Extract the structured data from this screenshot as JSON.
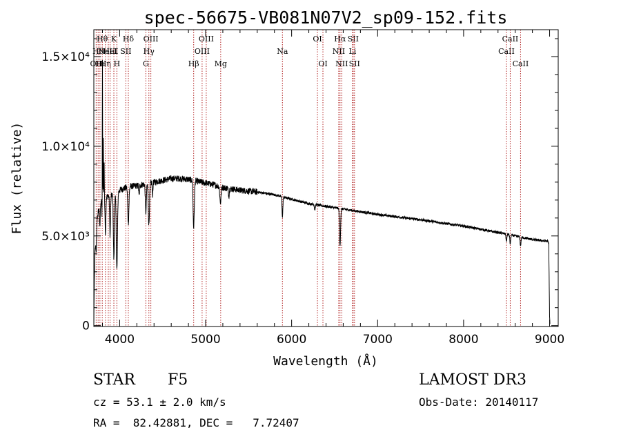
{
  "chart_data": {
    "type": "line",
    "title": "spec-56675-VB081N07V2_sp09-152.fits",
    "xlabel": "Wavelength (Å)",
    "ylabel": "Flux (relative)",
    "xlim": [
      3700,
      9100
    ],
    "ylim": [
      -50,
      16500
    ],
    "xticks": [
      4000,
      5000,
      6000,
      7000,
      8000,
      9000
    ],
    "yticks": [
      {
        "value": 0,
        "label": "0"
      },
      {
        "value": 5000,
        "label": "5.0×10³"
      },
      {
        "value": 10000,
        "label": "1.0×10⁴"
      },
      {
        "value": 15000,
        "label": "1.5×10⁴"
      }
    ],
    "continuum": [
      [
        3700,
        0
      ],
      [
        3705,
        2300
      ],
      [
        3712,
        3900
      ],
      [
        3725,
        5600
      ],
      [
        3750,
        6300
      ],
      [
        3775,
        6800
      ],
      [
        3800,
        7100
      ],
      [
        3850,
        7200
      ],
      [
        3900,
        7250
      ],
      [
        3950,
        7350
      ],
      [
        4000,
        7550
      ],
      [
        4100,
        7750
      ],
      [
        4200,
        7800
      ],
      [
        4300,
        7900
      ],
      [
        4400,
        8000
      ],
      [
        4500,
        8100
      ],
      [
        4600,
        8200
      ],
      [
        4700,
        8200
      ],
      [
        4800,
        8150
      ],
      [
        4900,
        8050
      ],
      [
        5000,
        7950
      ],
      [
        5100,
        7850
      ],
      [
        5200,
        7700
      ],
      [
        5400,
        7550
      ],
      [
        5600,
        7450
      ],
      [
        5800,
        7300
      ],
      [
        6000,
        7050
      ],
      [
        6200,
        6800
      ],
      [
        6400,
        6650
      ],
      [
        6600,
        6500
      ],
      [
        6800,
        6350
      ],
      [
        7000,
        6200
      ],
      [
        7500,
        5900
      ],
      [
        8000,
        5550
      ],
      [
        8500,
        5100
      ],
      [
        8800,
        4800
      ],
      [
        8980,
        4700
      ],
      [
        8990,
        4550
      ],
      [
        9000,
        500
      ],
      [
        9005,
        0
      ]
    ],
    "absorption_features": [
      {
        "wavelength": 3727,
        "depth": 1500,
        "width": 5
      },
      {
        "wavelength": 3770,
        "depth": 1300,
        "width": 4
      },
      {
        "wavelength": 3798,
        "depth": 1600,
        "width": 4
      },
      {
        "wavelength": 3835,
        "depth": 2000,
        "width": 5
      },
      {
        "wavelength": 3889,
        "depth": 2200,
        "width": 5
      },
      {
        "wavelength": 3933,
        "depth": 3600,
        "width": 6
      },
      {
        "wavelength": 3968,
        "depth": 4300,
        "width": 7
      },
      {
        "wavelength": 4101,
        "depth": 2000,
        "width": 7
      },
      {
        "wavelength": 4226,
        "depth": 600,
        "width": 4
      },
      {
        "wavelength": 4305,
        "depth": 1600,
        "width": 6
      },
      {
        "wavelength": 4340,
        "depth": 2300,
        "width": 7
      },
      {
        "wavelength": 4383,
        "depth": 700,
        "width": 4
      },
      {
        "wavelength": 4861,
        "depth": 2600,
        "width": 7
      },
      {
        "wavelength": 5172,
        "depth": 900,
        "width": 7
      },
      {
        "wavelength": 5270,
        "depth": 400,
        "width": 5
      },
      {
        "wavelength": 5893,
        "depth": 1100,
        "width": 5
      },
      {
        "wavelength": 6270,
        "depth": 300,
        "width": 5
      },
      {
        "wavelength": 6563,
        "depth": 2100,
        "width": 6
      },
      {
        "wavelength": 8498,
        "depth": 400,
        "width": 5
      },
      {
        "wavelength": 8542,
        "depth": 500,
        "width": 5
      },
      {
        "wavelength": 8662,
        "depth": 500,
        "width": 5
      }
    ],
    "emission_features": [
      {
        "wavelength": 3800,
        "height": 9000,
        "width": 2
      },
      {
        "wavelength": 3810,
        "height": 3500,
        "width": 2
      },
      {
        "wavelength": 3820,
        "height": 1900,
        "width": 2
      }
    ],
    "line_markers": [
      {
        "wavelength": 3727,
        "label": "OII",
        "row": 2
      },
      {
        "wavelength": 3750,
        "label": "Hθ",
        "row": 1
      },
      {
        "wavelength": 3771,
        "label": "Hι",
        "row": 2
      },
      {
        "wavelength": 3798,
        "label": "Hθ",
        "row": 0
      },
      {
        "wavelength": 3835,
        "label": "Hη",
        "row": 2
      },
      {
        "wavelength": 3868,
        "label": "NeIII",
        "row": 1
      },
      {
        "wavelength": 3889,
        "label": "HeI",
        "row": 1
      },
      {
        "wavelength": 3933,
        "label": "K",
        "row": 0
      },
      {
        "wavelength": 3968,
        "label": "H",
        "row": 2
      },
      {
        "wavelength": 4072,
        "label": "SII",
        "row": 1
      },
      {
        "wavelength": 4101,
        "label": "Hδ",
        "row": 0
      },
      {
        "wavelength": 4305,
        "label": "G",
        "row": 2
      },
      {
        "wavelength": 4340,
        "label": "Hγ",
        "row": 1
      },
      {
        "wavelength": 4363,
        "label": "OIII",
        "row": 0
      },
      {
        "wavelength": 4861,
        "label": "Hβ",
        "row": 2
      },
      {
        "wavelength": 4959,
        "label": "OIII",
        "row": 1
      },
      {
        "wavelength": 5007,
        "label": "OIII",
        "row": 0
      },
      {
        "wavelength": 5175,
        "label": "Mg",
        "row": 2
      },
      {
        "wavelength": 5893,
        "label": "Na",
        "row": 1
      },
      {
        "wavelength": 6300,
        "label": "OI",
        "row": 0
      },
      {
        "wavelength": 6364,
        "label": "OI",
        "row": 2
      },
      {
        "wavelength": 6548,
        "label": "NII",
        "row": 1
      },
      {
        "wavelength": 6563,
        "label": "Hα",
        "row": 0
      },
      {
        "wavelength": 6583,
        "label": "NII",
        "row": 2
      },
      {
        "wavelength": 6708,
        "label": "Li",
        "row": 1
      },
      {
        "wavelength": 6716,
        "label": "SII",
        "row": 0
      },
      {
        "wavelength": 6731,
        "label": "SII",
        "row": 2
      },
      {
        "wavelength": 8498,
        "label": "CaII",
        "row": 1
      },
      {
        "wavelength": 8542,
        "label": "CaII",
        "row": 0
      },
      {
        "wavelength": 8662,
        "label": "CaII",
        "row": 2
      }
    ],
    "colors": {
      "spectrum": "#000000",
      "marker": "#b22222",
      "axes": "#000000"
    }
  },
  "info": {
    "object_class": "STAR",
    "subclass": "F5",
    "survey": "LAMOST DR3",
    "redshift": "cz = 53.1 ± 2.0 km/s",
    "obs_date": "Obs-Date: 20140117",
    "coords": "RA =  82.42881, DEC =   7.72407"
  }
}
